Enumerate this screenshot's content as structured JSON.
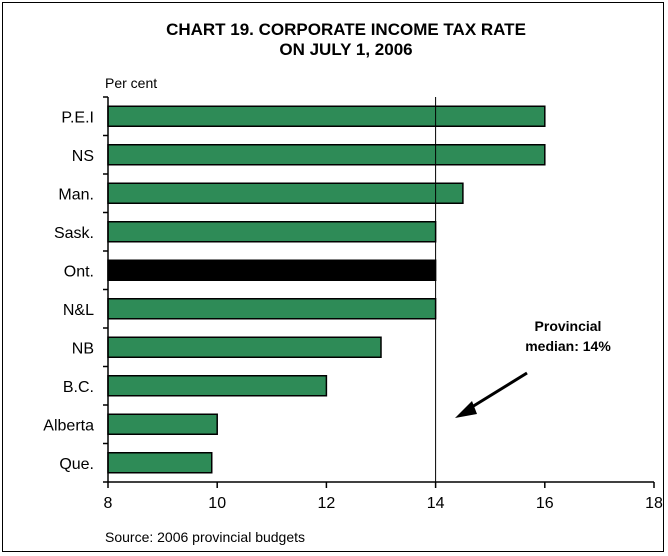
{
  "chart_data": {
    "type": "bar",
    "orientation": "horizontal",
    "title_line1": "CHART 19. CORPORATE INCOME TAX RATE",
    "title_line2": "ON JULY 1, 2006",
    "unit_label": "Per cent",
    "source": "Source: 2006 provincial budgets",
    "categories": [
      "P.E.I",
      "NS",
      "Man.",
      "Sask.",
      "Ont.",
      "N&L",
      "NB",
      "B.C.",
      "Alberta",
      "Que."
    ],
    "values": [
      16,
      16,
      14.5,
      14,
      14,
      14,
      13,
      12,
      10,
      9.9
    ],
    "highlight_category": "Ont.",
    "xlim": [
      8,
      18
    ],
    "xticks": [
      8,
      10,
      12,
      14,
      16,
      18
    ],
    "reference_line": {
      "value": 14,
      "label_line1": "Provincial",
      "label_line2": "median: 14%"
    },
    "colors": {
      "bar": "#2e8b57",
      "highlight": "#000000",
      "edge": "#000000"
    },
    "grid": false,
    "legend": "none"
  }
}
